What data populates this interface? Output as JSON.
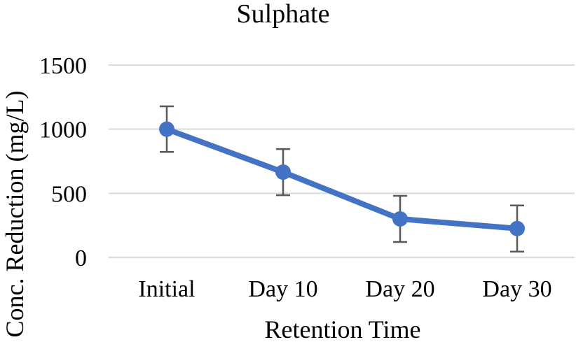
{
  "chart_data": {
    "type": "line",
    "title": "Sulphate",
    "xlabel": "Retention Time",
    "ylabel": "Conc. Reduction (mg/L)",
    "categories": [
      "Initial",
      "Day 10",
      "Day 20",
      "Day 30"
    ],
    "series": [
      {
        "name": "Sulphate",
        "values": [
          1000,
          665,
          300,
          225
        ],
        "error": [
          178,
          180,
          180,
          180
        ],
        "color": "#4472C4"
      }
    ],
    "ylim": [
      0,
      1500
    ],
    "yticks": [
      0,
      500,
      1000,
      1500
    ],
    "grid": true,
    "error_bar_color": "#595959",
    "grid_color": "#D9D9D9"
  }
}
